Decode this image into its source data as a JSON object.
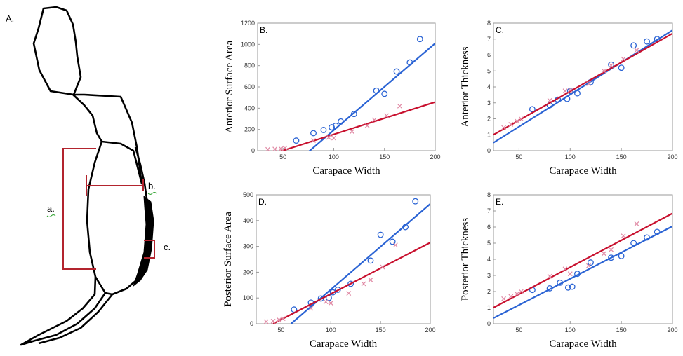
{
  "panel_a": {
    "panel_label": "A.",
    "labels": {
      "a": "a.",
      "b": "b.",
      "c": "c."
    }
  },
  "colors": {
    "blue": "#2a63d4",
    "red": "#c8102e",
    "pink": "#e08aa5",
    "outline": "#000000",
    "bracket": "#b3242e"
  },
  "chart_data": [
    {
      "id": "B",
      "type": "scatter",
      "title": "B.",
      "xlabel": "Carapace Width",
      "ylabel": "Anterior Surface Area",
      "xlim": [
        25,
        200
      ],
      "ylim": [
        0,
        1200
      ],
      "xticks": [
        50,
        100,
        150,
        200
      ],
      "yticks": [
        0,
        200,
        400,
        600,
        800,
        1000,
        1200
      ],
      "grid": false,
      "series": [
        {
          "marker": "circle",
          "color": "#2a63d4",
          "points": [
            [
              63,
              95
            ],
            [
              80,
              165
            ],
            [
              90,
              195
            ],
            [
              98,
              220
            ],
            [
              102,
              235
            ],
            [
              107,
              275
            ],
            [
              120,
              345
            ],
            [
              142,
              565
            ],
            [
              150,
              535
            ],
            [
              162,
              745
            ],
            [
              175,
              830
            ],
            [
              185,
              1050
            ]
          ],
          "fit": [
            [
              25,
              -420
            ],
            [
              200,
              1010
            ]
          ]
        },
        {
          "marker": "x",
          "color": "#e08aa5",
          "line_color": "#c8102e",
          "points": [
            [
              35,
              12
            ],
            [
              42,
              15
            ],
            [
              48,
              18
            ],
            [
              52,
              25
            ],
            [
              80,
              95
            ],
            [
              95,
              125
            ],
            [
              100,
              118
            ],
            [
              118,
              180
            ],
            [
              133,
              235
            ],
            [
              140,
              290
            ],
            [
              152,
              330
            ],
            [
              165,
              420
            ]
          ],
          "fit": [
            [
              25,
              -75
            ],
            [
              200,
              458
            ]
          ]
        }
      ]
    },
    {
      "id": "C",
      "type": "scatter",
      "title": "C.",
      "xlabel": "Carapace Width",
      "ylabel": "Anterior Thickness",
      "xlim": [
        25,
        200
      ],
      "ylim": [
        0,
        8
      ],
      "xticks": [
        50,
        100,
        150,
        200
      ],
      "yticks": [
        0,
        1,
        2,
        3,
        4,
        5,
        6,
        7,
        8
      ],
      "grid": false,
      "series": [
        {
          "marker": "circle",
          "color": "#2a63d4",
          "points": [
            [
              63,
              2.6
            ],
            [
              80,
              2.85
            ],
            [
              88,
              3.2
            ],
            [
              97,
              3.25
            ],
            [
              100,
              3.75
            ],
            [
              107,
              3.6
            ],
            [
              120,
              4.3
            ],
            [
              140,
              5.4
            ],
            [
              150,
              5.2
            ],
            [
              162,
              6.6
            ],
            [
              175,
              6.85
            ],
            [
              185,
              7.0
            ]
          ],
          "fit": [
            [
              25,
              0.5
            ],
            [
              200,
              7.55
            ]
          ]
        },
        {
          "marker": "x",
          "color": "#e08aa5",
          "line_color": "#c8102e",
          "points": [
            [
              35,
              1.45
            ],
            [
              42,
              1.65
            ],
            [
              48,
              1.85
            ],
            [
              52,
              2.0
            ],
            [
              80,
              3.15
            ],
            [
              95,
              3.75
            ],
            [
              100,
              3.8
            ],
            [
              118,
              4.2
            ],
            [
              133,
              5.0
            ],
            [
              140,
              5.35
            ],
            [
              152,
              5.75
            ],
            [
              165,
              6.3
            ]
          ],
          "fit": [
            [
              25,
              1.0
            ],
            [
              200,
              7.35
            ]
          ]
        }
      ]
    },
    {
      "id": "D",
      "type": "scatter",
      "title": "D.",
      "xlabel": "Carapace Width",
      "ylabel": "Posterior Surface Area",
      "xlim": [
        25,
        200
      ],
      "ylim": [
        0,
        500
      ],
      "xticks": [
        50,
        100,
        150,
        200
      ],
      "yticks": [
        0,
        100,
        200,
        300,
        400,
        500
      ],
      "grid": false,
      "series": [
        {
          "marker": "circle",
          "color": "#2a63d4",
          "points": [
            [
              63,
              55
            ],
            [
              80,
              82
            ],
            [
              90,
              98
            ],
            [
              98,
              100
            ],
            [
              102,
              122
            ],
            [
              107,
              132
            ],
            [
              120,
              155
            ],
            [
              140,
              245
            ],
            [
              150,
              345
            ],
            [
              162,
              318
            ],
            [
              175,
              375
            ],
            [
              185,
              475
            ]
          ],
          "fit": [
            [
              60,
              0
            ],
            [
              200,
              465
            ]
          ]
        },
        {
          "marker": "x",
          "color": "#e08aa5",
          "line_color": "#c8102e",
          "points": [
            [
              35,
              8
            ],
            [
              42,
              10
            ],
            [
              48,
              15
            ],
            [
              52,
              20
            ],
            [
              80,
              60
            ],
            [
              95,
              85
            ],
            [
              100,
              80
            ],
            [
              118,
              118
            ],
            [
              133,
              155
            ],
            [
              140,
              170
            ],
            [
              152,
              220
            ],
            [
              165,
              305
            ]
          ],
          "fit": [
            [
              42,
              0
            ],
            [
              200,
              315
            ]
          ]
        }
      ]
    },
    {
      "id": "E",
      "type": "scatter",
      "title": "E.",
      "xlabel": "Carapace Width",
      "ylabel": "Posterior Thickness",
      "xlim": [
        25,
        200
      ],
      "ylim": [
        0,
        8
      ],
      "xticks": [
        50,
        100,
        150,
        200
      ],
      "yticks": [
        0,
        1,
        2,
        3,
        4,
        5,
        6,
        7,
        8
      ],
      "grid": false,
      "series": [
        {
          "marker": "circle",
          "color": "#2a63d4",
          "points": [
            [
              63,
              2.1
            ],
            [
              80,
              2.2
            ],
            [
              90,
              2.55
            ],
            [
              98,
              2.25
            ],
            [
              102,
              2.3
            ],
            [
              107,
              3.1
            ],
            [
              120,
              3.8
            ],
            [
              140,
              4.1
            ],
            [
              150,
              4.2
            ],
            [
              162,
              5.0
            ],
            [
              175,
              5.35
            ],
            [
              185,
              5.7
            ]
          ],
          "fit": [
            [
              25,
              0.35
            ],
            [
              200,
              6.05
            ]
          ]
        },
        {
          "marker": "x",
          "color": "#e08aa5",
          "line_color": "#c8102e",
          "points": [
            [
              35,
              1.55
            ],
            [
              42,
              1.7
            ],
            [
              48,
              1.85
            ],
            [
              52,
              2.0
            ],
            [
              80,
              2.95
            ],
            [
              95,
              3.4
            ],
            [
              100,
              3.1
            ],
            [
              118,
              3.6
            ],
            [
              133,
              4.35
            ],
            [
              140,
              4.6
            ],
            [
              152,
              5.45
            ],
            [
              165,
              6.2
            ]
          ],
          "fit": [
            [
              25,
              1.0
            ],
            [
              200,
              6.85
            ]
          ]
        }
      ]
    }
  ]
}
